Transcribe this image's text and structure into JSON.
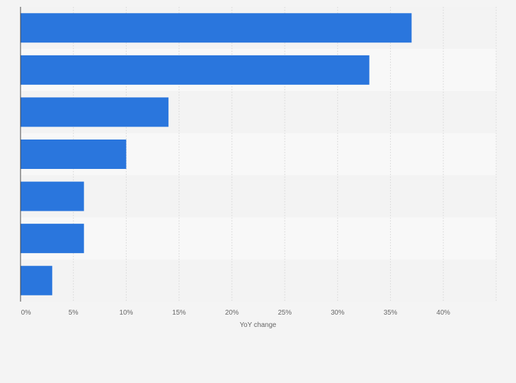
{
  "colors": {
    "bar": "#2a76dd",
    "background": "#f4f4f4",
    "band_light": "#f8f8f8",
    "band_dark": "#f3f3f3",
    "grid": "#dcdcdc",
    "axis": "#444444",
    "text": "#666666"
  },
  "chart_data": {
    "type": "bar",
    "orientation": "horizontal",
    "categories": [
      "",
      "",
      "",
      "",
      "",
      "",
      ""
    ],
    "values": [
      37,
      33,
      14,
      10,
      6,
      6,
      3
    ],
    "xlabel": "YoY change",
    "ylabel": "",
    "xlim": [
      0,
      45
    ],
    "x_ticks": [
      0,
      5,
      10,
      15,
      20,
      25,
      30,
      35,
      40
    ],
    "x_tick_labels": [
      "0%",
      "5%",
      "10%",
      "15%",
      "20%",
      "25%",
      "30%",
      "35%",
      "40%"
    ],
    "grid": true,
    "legend": "none"
  }
}
